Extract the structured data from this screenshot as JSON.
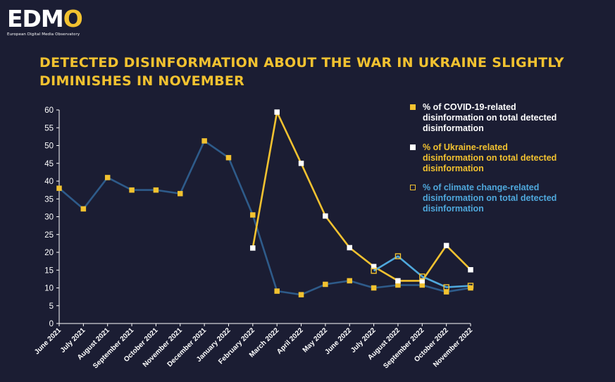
{
  "brand": {
    "name_main": "EDM",
    "name_accent": "O",
    "subtitle": "European Digital Media Observatory"
  },
  "header": {
    "title": "DETECTED DISINFORMATION ABOUT THE WAR IN UKRAINE SLIGHTLY DIMINISHES IN NOVEMBER"
  },
  "colors": {
    "background": "#1b1d33",
    "covid": "#2e5b8a",
    "ukraine": "#f2c230",
    "climate": "#4fa8dc",
    "axis": "#ffffff",
    "accent": "#f2c230"
  },
  "legend": {
    "position": "top-right",
    "items": [
      {
        "label": "% of COVID-19-related disinformation on total detected disinformation",
        "text_color": "#ffffff",
        "swatch": "filled-yellow"
      },
      {
        "label": "% of Ukraine-related disinformation on total detected disinformation",
        "text_color": "#f2c230",
        "swatch": "filled-white"
      },
      {
        "label": "% of climate change-related disinformation on total detected disinformation",
        "text_color": "#4fa8dc",
        "swatch": "outline-yellow"
      }
    ]
  },
  "chart_data": {
    "type": "line",
    "title": "DETECTED DISINFORMATION ABOUT THE WAR IN UKRAINE SLIGHTLY DIMINISHES IN NOVEMBER",
    "xlabel": "",
    "ylabel": "",
    "ylim": [
      0,
      60
    ],
    "yticks": [
      0,
      5,
      10,
      15,
      20,
      25,
      30,
      35,
      40,
      45,
      50,
      55,
      60
    ],
    "grid": false,
    "categories": [
      "June 2021",
      "July 2021",
      "August 2021",
      "September 2021",
      "October 2021",
      "November 2021",
      "December 2021",
      "January 2022",
      "February 2022",
      "March 2022",
      "April 2022",
      "May 2022",
      "June 2022",
      "July 2022",
      "August 2022",
      "September 2022",
      "October 2022",
      "November 2022"
    ],
    "series": [
      {
        "name": "% of COVID-19-related disinformation on total detected disinformation",
        "values": [
          38,
          32.2,
          41,
          37.5,
          37.5,
          36.5,
          51.3,
          46.6,
          30.5,
          9.1,
          8.1,
          11,
          12,
          10,
          10.8,
          10.8,
          8.9,
          10
        ]
      },
      {
        "name": "% of Ukraine-related disinformation on total detected disinformation",
        "values": [
          null,
          null,
          null,
          null,
          null,
          null,
          null,
          null,
          21.2,
          59.4,
          45,
          30.2,
          21.3,
          16,
          12,
          12,
          21.9,
          15.1
        ]
      },
      {
        "name": "% of climate change-related disinformation on total detected disinformation",
        "values": [
          null,
          null,
          null,
          null,
          null,
          null,
          null,
          null,
          null,
          null,
          null,
          null,
          null,
          14.8,
          18.9,
          13.2,
          10.2,
          10.6
        ]
      }
    ]
  }
}
